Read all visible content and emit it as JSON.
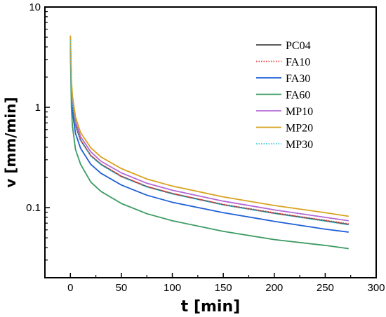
{
  "chart_data": {
    "type": "line",
    "title": "",
    "xlabel": "t [min]",
    "ylabel": "v [mm/min]",
    "xlim": [
      -25,
      300
    ],
    "ylim": [
      0.02,
      10
    ],
    "yscale": "log",
    "xticks": [
      0,
      50,
      100,
      150,
      200,
      250,
      300
    ],
    "xtick_labels": [
      "0",
      "50",
      "100",
      "150",
      "200",
      "250",
      "300"
    ],
    "yticks": [
      0.1,
      1,
      10
    ],
    "ytick_labels": [
      "0.1",
      "1",
      "10"
    ],
    "grid": false,
    "legend_position": "top-right",
    "x": [
      0,
      1,
      2,
      5,
      10,
      20,
      30,
      50,
      75,
      100,
      150,
      200,
      250,
      273
    ],
    "series": [
      {
        "name": "PC04",
        "color": "#444444",
        "dash": "solid",
        "values": [
          4.8,
          1.55,
          1.08,
          0.66,
          0.47,
          0.33,
          0.27,
          0.205,
          0.162,
          0.138,
          0.107,
          0.088,
          0.074,
          0.068
        ]
      },
      {
        "name": "FA10",
        "color": "#e8433f",
        "dash": "dotted",
        "values": [
          4.9,
          1.57,
          1.09,
          0.67,
          0.475,
          0.333,
          0.272,
          0.207,
          0.163,
          0.139,
          0.108,
          0.089,
          0.075,
          0.069
        ]
      },
      {
        "name": "FA30",
        "color": "#1f5fd6",
        "dash": "solid",
        "values": [
          4.3,
          1.3,
          0.9,
          0.55,
          0.39,
          0.27,
          0.22,
          0.168,
          0.133,
          0.113,
          0.089,
          0.073,
          0.061,
          0.057
        ]
      },
      {
        "name": "FA60",
        "color": "#3c9b63",
        "dash": "solid",
        "values": [
          3.6,
          1.0,
          0.65,
          0.38,
          0.27,
          0.18,
          0.145,
          0.11,
          0.087,
          0.074,
          0.058,
          0.048,
          0.042,
          0.039
        ]
      },
      {
        "name": "MP10",
        "color": "#b469d6",
        "dash": "solid",
        "values": [
          5.0,
          1.7,
          1.18,
          0.72,
          0.51,
          0.36,
          0.29,
          0.222,
          0.175,
          0.149,
          0.116,
          0.095,
          0.08,
          0.074
        ]
      },
      {
        "name": "MP20",
        "color": "#d9a21f",
        "dash": "solid",
        "values": [
          5.2,
          1.85,
          1.3,
          0.8,
          0.56,
          0.395,
          0.32,
          0.245,
          0.193,
          0.164,
          0.128,
          0.105,
          0.089,
          0.082
        ]
      },
      {
        "name": "MP30",
        "color": "#3ec7d6",
        "dash": "dotted",
        "values": [
          4.7,
          1.52,
          1.06,
          0.65,
          0.465,
          0.326,
          0.266,
          0.202,
          0.16,
          0.136,
          0.106,
          0.087,
          0.073,
          0.067
        ]
      }
    ]
  }
}
